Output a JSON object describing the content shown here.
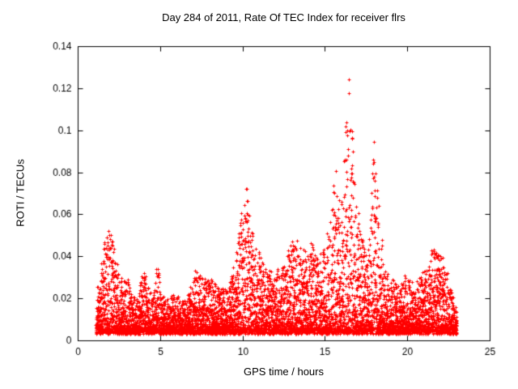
{
  "page": {
    "background": "#ffffff"
  },
  "chart_data": {
    "type": "scatter",
    "title": "Day 284 of 2011, Rate Of TEC Index for receiver flrs",
    "xlabel": "GPS time / hours",
    "ylabel": "ROTI / TECUs",
    "xlim": [
      0,
      25
    ],
    "ylim": [
      0,
      0.14
    ],
    "xticks": [
      0,
      5,
      10,
      15,
      20,
      25
    ],
    "xtick_labels": [
      "0",
      "5",
      "10",
      "15",
      "20",
      "25"
    ],
    "yticks": [
      0,
      0.02,
      0.04,
      0.06,
      0.08,
      0.1,
      0.12,
      0.14
    ],
    "ytick_labels": [
      "0",
      "0.02",
      "0.04",
      "0.06",
      "0.08",
      "0.1",
      "0.12",
      "0.14"
    ],
    "grid": false,
    "legend": "none",
    "marker": "plus",
    "marker_color": "#ff0000",
    "axis_color": "#000000",
    "x_range_data": [
      1.1,
      23.0
    ],
    "baseline": 0.004,
    "n_points": 7000,
    "seed": 42,
    "envelope_note": "piecewise-linear maximum ROTI envelope [hour, max ROTI] read from the plot; dense scatter fills between baseline and envelope",
    "envelope": [
      [
        1.1,
        0.02
      ],
      [
        1.3,
        0.03
      ],
      [
        1.6,
        0.048
      ],
      [
        1.9,
        0.054
      ],
      [
        2.1,
        0.048
      ],
      [
        2.4,
        0.035
      ],
      [
        2.7,
        0.028
      ],
      [
        3.0,
        0.03
      ],
      [
        3.3,
        0.022
      ],
      [
        3.6,
        0.02
      ],
      [
        3.9,
        0.033
      ],
      [
        4.2,
        0.03
      ],
      [
        4.5,
        0.02
      ],
      [
        4.8,
        0.037
      ],
      [
        5.1,
        0.022
      ],
      [
        5.4,
        0.018
      ],
      [
        5.7,
        0.022
      ],
      [
        6.0,
        0.021
      ],
      [
        6.3,
        0.018
      ],
      [
        6.6,
        0.02
      ],
      [
        6.9,
        0.03
      ],
      [
        7.2,
        0.035
      ],
      [
        7.5,
        0.03
      ],
      [
        7.8,
        0.028
      ],
      [
        8.1,
        0.03
      ],
      [
        8.4,
        0.028
      ],
      [
        8.7,
        0.024
      ],
      [
        9.0,
        0.025
      ],
      [
        9.3,
        0.03
      ],
      [
        9.6,
        0.042
      ],
      [
        9.9,
        0.06
      ],
      [
        10.2,
        0.075
      ],
      [
        10.5,
        0.055
      ],
      [
        10.8,
        0.045
      ],
      [
        11.1,
        0.042
      ],
      [
        11.4,
        0.035
      ],
      [
        11.7,
        0.032
      ],
      [
        12.0,
        0.03
      ],
      [
        12.3,
        0.035
      ],
      [
        12.6,
        0.038
      ],
      [
        12.9,
        0.045
      ],
      [
        13.2,
        0.05
      ],
      [
        13.5,
        0.045
      ],
      [
        13.8,
        0.042
      ],
      [
        14.1,
        0.048
      ],
      [
        14.4,
        0.04
      ],
      [
        14.7,
        0.042
      ],
      [
        15.0,
        0.045
      ],
      [
        15.3,
        0.055
      ],
      [
        15.6,
        0.085
      ],
      [
        15.9,
        0.065
      ],
      [
        16.2,
        0.095
      ],
      [
        16.5,
        0.128
      ],
      [
        16.8,
        0.08
      ],
      [
        17.1,
        0.055
      ],
      [
        17.4,
        0.045
      ],
      [
        17.7,
        0.05
      ],
      [
        18.0,
        0.098
      ],
      [
        18.3,
        0.068
      ],
      [
        18.6,
        0.035
      ],
      [
        18.9,
        0.03
      ],
      [
        19.2,
        0.028
      ],
      [
        19.5,
        0.025
      ],
      [
        19.8,
        0.03
      ],
      [
        20.1,
        0.028
      ],
      [
        20.4,
        0.026
      ],
      [
        20.7,
        0.03
      ],
      [
        21.0,
        0.032
      ],
      [
        21.3,
        0.04
      ],
      [
        21.6,
        0.045
      ],
      [
        21.9,
        0.042
      ],
      [
        22.2,
        0.038
      ],
      [
        22.5,
        0.03
      ],
      [
        22.8,
        0.02
      ],
      [
        23.0,
        0.015
      ]
    ]
  }
}
